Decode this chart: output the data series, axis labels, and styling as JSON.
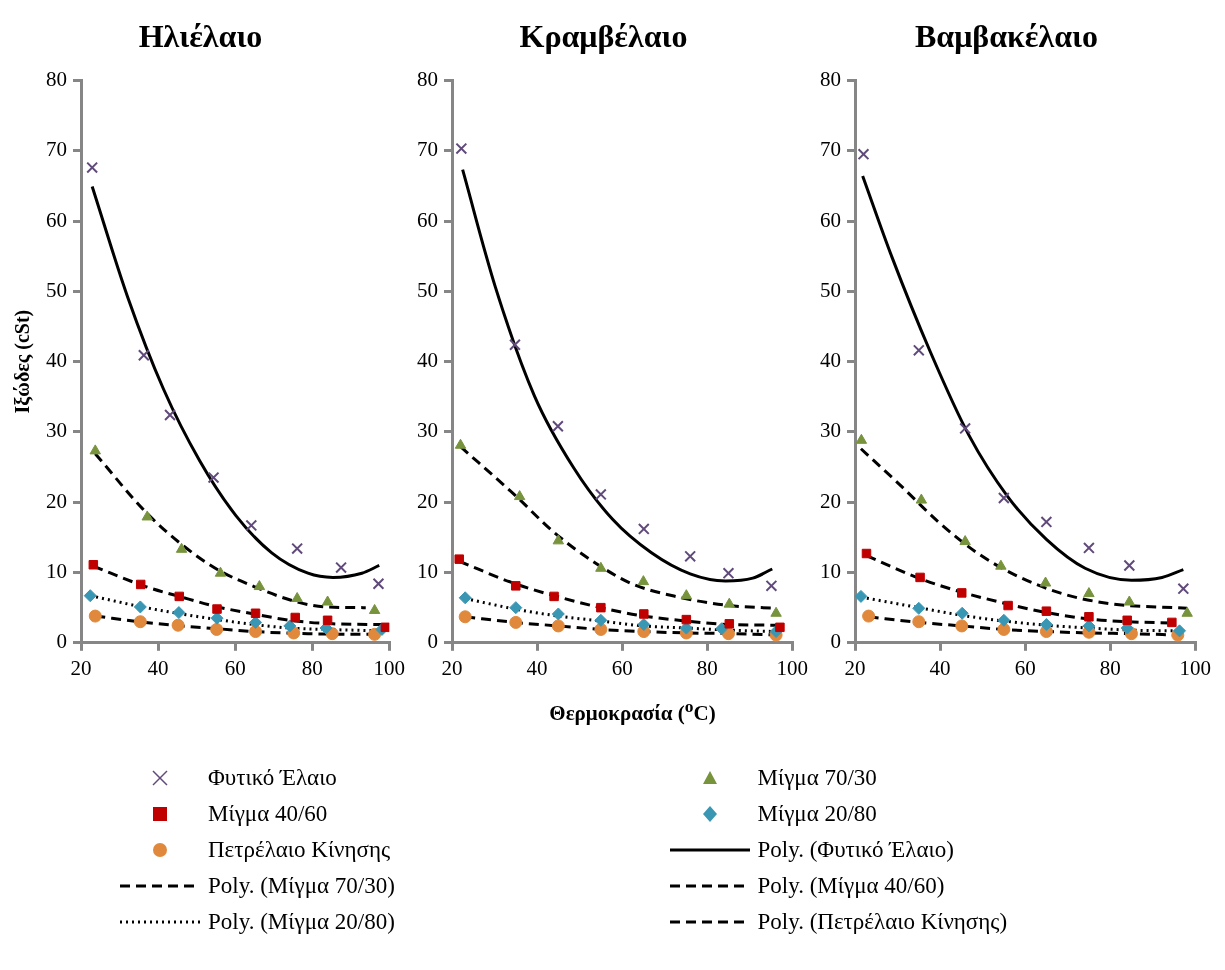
{
  "chart_data": [
    {
      "type": "scatter",
      "title": "Ηλιέλαιο",
      "ylabel": "Ιξώδες (cSt)",
      "xlim": [
        20,
        100
      ],
      "xticks": [
        20,
        40,
        60,
        80,
        100
      ],
      "ylim": [
        0,
        80
      ],
      "yticks": [
        0,
        10,
        20,
        30,
        40,
        50,
        60,
        70,
        80
      ],
      "grid": false,
      "legend": "bottom",
      "series": [
        {
          "name": "Φυτικό Έλαιο",
          "type": "scatter",
          "marker": "cross",
          "color": "#604a7b",
          "x": [
            22.9,
            36.3,
            43.1,
            54.4,
            64.2,
            76.1,
            87.5,
            97.2
          ],
          "values": [
            67.6,
            40.9,
            32.4,
            23.5,
            16.7,
            13.4,
            10.7,
            8.4
          ]
        },
        {
          "name": "Μίγμα 70/30",
          "type": "scatter",
          "marker": "triangle",
          "color": "#77933c",
          "x": [
            23.7,
            37.2,
            46.1,
            56.2,
            66.3,
            76.1,
            84,
            96.2
          ],
          "values": [
            27.3,
            17.9,
            13.3,
            9.9,
            8.0,
            6.3,
            5.8,
            4.6
          ]
        },
        {
          "name": "Μίγμα 40/60",
          "type": "scatter",
          "marker": "square",
          "color": "#c00000",
          "x": [
            23.2,
            35.5,
            45.5,
            55.3,
            65.3,
            75.6,
            84,
            99
          ],
          "values": [
            11.1,
            8.3,
            6.6,
            4.8,
            4.2,
            3.6,
            3.2,
            2.2
          ]
        },
        {
          "name": "Μίγμα 20/80",
          "type": "scatter",
          "marker": "diamond",
          "color": "#3a97b4",
          "x": [
            22.4,
            35.4,
            45.4,
            55.3,
            65.3,
            74.2,
            83.6,
            98.1
          ],
          "values": [
            6.7,
            5.1,
            4.3,
            3.5,
            2.9,
            2.4,
            2.1,
            1.9
          ]
        },
        {
          "name": "Πετρέλαιο Κίνησης",
          "type": "scatter",
          "marker": "circle",
          "color": "#e0893c",
          "x": [
            23.7,
            35.4,
            45.2,
            55.2,
            65.3,
            75.2,
            85.2,
            96.2
          ],
          "values": [
            3.8,
            3.0,
            2.5,
            1.9,
            1.6,
            1.4,
            1.3,
            1.2
          ]
        },
        {
          "name": "Poly. (Φυτικό Έλαιο)",
          "type": "line",
          "line_style": "solid",
          "color": "#000000",
          "x": [
            22.9,
            32.1,
            41.4,
            50.8,
            60.2,
            69.5,
            78.9,
            85.4,
            92.9,
            97.4
          ],
          "values": [
            64.9,
            49.2,
            36.1,
            25.9,
            18.1,
            12.8,
            9.9,
            9.3,
            9.9,
            11.0
          ]
        },
        {
          "name": "Poly. (Μίγμα 70/30)",
          "type": "line",
          "line_style": "dashed",
          "color": "#000000",
          "x": [
            23.7,
            36.8,
            46.1,
            55.5,
            64.9,
            76.1,
            83.6,
            93.9
          ],
          "values": [
            26.9,
            18.6,
            14.0,
            10.4,
            8.0,
            5.8,
            5.1,
            5.0
          ]
        },
        {
          "name": "Poly. (Μίγμα 40/60)",
          "type": "line",
          "line_style": "dashed",
          "color": "#000000",
          "x": [
            23.2,
            36.8,
            46.1,
            55.5,
            64.9,
            74.2,
            85.4,
            98.6
          ],
          "values": [
            10.9,
            8.0,
            6.5,
            5.1,
            4.1,
            3.2,
            2.7,
            2.6
          ]
        },
        {
          "name": "Poly. (Μίγμα 20/80)",
          "type": "line",
          "line_style": "dotted",
          "color": "#000000",
          "x": [
            22.4,
            36.8,
            46.1,
            55.5,
            64.9,
            74.2,
            83.6,
            98.6
          ],
          "values": [
            6.7,
            5.0,
            4.1,
            3.3,
            2.6,
            2.1,
            1.9,
            1.7
          ]
        },
        {
          "name": "Poly. (Πετρέλαιο Κίνησης)",
          "type": "line",
          "line_style": "dashed",
          "color": "#000000",
          "x": [
            23.7,
            36.8,
            46.1,
            55.5,
            64.9,
            78.9,
            92.9,
            97.6
          ],
          "values": [
            3.8,
            2.9,
            2.4,
            2.0,
            1.6,
            1.3,
            1.2,
            1.2
          ]
        }
      ]
    },
    {
      "type": "scatter",
      "title": "Κραμβέλαιο",
      "xlabel": "Θερμοκρασία ($^{o}$C)",
      "xlim": [
        20,
        100
      ],
      "xticks": [
        20,
        40,
        60,
        80,
        100
      ],
      "ylim": [
        0,
        80
      ],
      "yticks": [
        0,
        10,
        20,
        30,
        40,
        50,
        60,
        70,
        80
      ],
      "grid": false,
      "series": [
        {
          "name": "Φυτικό Έλαιο",
          "type": "scatter",
          "marker": "cross",
          "color": "#604a7b",
          "x": [
            22.2,
            34.8,
            44.9,
            55.0,
            65.1,
            76.0,
            85.0,
            95.1
          ],
          "values": [
            70.3,
            42.4,
            30.8,
            21.1,
            16.2,
            12.3,
            9.9,
            8.1
          ]
        },
        {
          "name": "Μίγμα 70/30",
          "type": "scatter",
          "marker": "triangle",
          "color": "#77933c",
          "x": [
            22.0,
            35.9,
            45.0,
            55.0,
            65.0,
            75.1,
            85.2,
            96.2
          ],
          "values": [
            28.1,
            20.8,
            14.5,
            10.6,
            8.7,
            6.7,
            5.5,
            4.2
          ]
        },
        {
          "name": "Μίγμα 40/60",
          "type": "scatter",
          "marker": "square",
          "color": "#c00000",
          "x": [
            21.7,
            35.0,
            44.0,
            55.0,
            65.1,
            75.1,
            85.2,
            97.1
          ],
          "values": [
            11.9,
            8.1,
            6.6,
            5.0,
            4.1,
            3.3,
            2.7,
            2.2
          ]
        },
        {
          "name": "Μίγμα 20/80",
          "type": "scatter",
          "marker": "diamond",
          "color": "#3a97b4",
          "x": [
            23.1,
            35.0,
            45.0,
            55.0,
            65.1,
            75.1,
            83.4,
            96.2
          ],
          "values": [
            6.4,
            5.0,
            4.1,
            3.2,
            2.6,
            2.1,
            2.0,
            1.6
          ]
        },
        {
          "name": "Πετρέλαιο Κίνησης",
          "type": "scatter",
          "marker": "circle",
          "color": "#e0893c",
          "x": [
            23.1,
            35.0,
            45.0,
            55.0,
            65.1,
            75.1,
            85.0,
            96.2
          ],
          "values": [
            3.7,
            2.9,
            2.4,
            1.9,
            1.6,
            1.4,
            1.3,
            1.1
          ]
        },
        {
          "name": "Poly. (Φυτικό Έλαιο)",
          "type": "line",
          "line_style": "solid",
          "color": "#000000",
          "x": [
            22.5,
            30.2,
            39.4,
            48.6,
            57.7,
            66.9,
            76.0,
            84.3,
            90.7,
            95.3
          ],
          "values": [
            67.3,
            50.6,
            35.1,
            24.9,
            17.6,
            12.8,
            9.8,
            8.8,
            9.2,
            10.5
          ]
        },
        {
          "name": "Poly. (Μίγμα 70/30)",
          "type": "line",
          "line_style": "dashed",
          "color": "#000000",
          "x": [
            22.0,
            34.8,
            44.0,
            53.1,
            62.3,
            73.3,
            85.2,
            96.2
          ],
          "values": [
            27.9,
            21.0,
            15.7,
            11.6,
            8.4,
            6.5,
            5.3,
            4.9
          ]
        },
        {
          "name": "Poly. (Μίγμα 40/60)",
          "type": "line",
          "line_style": "dashed",
          "color": "#000000",
          "x": [
            21.7,
            34.8,
            44.0,
            55.0,
            65.1,
            75.1,
            85.2,
            97.1
          ],
          "values": [
            11.6,
            8.4,
            6.7,
            5.0,
            3.8,
            3.1,
            2.6,
            2.5
          ]
        },
        {
          "name": "Poly. (Μίγμα 20/80)",
          "type": "line",
          "line_style": "dotted",
          "color": "#000000",
          "x": [
            23.1,
            34.8,
            45.0,
            55.0,
            65.1,
            75.1,
            85.2,
            96.2
          ],
          "values": [
            6.3,
            4.8,
            3.8,
            3.1,
            2.4,
            2.1,
            1.8,
            1.6
          ]
        },
        {
          "name": "Poly. (Πετρέλαιο Κίνησης)",
          "type": "line",
          "line_style": "dashed",
          "color": "#000000",
          "x": [
            23.1,
            34.8,
            45.0,
            55.0,
            65.1,
            75.1,
            86.1,
            96.2
          ],
          "values": [
            3.7,
            2.9,
            2.4,
            1.9,
            1.6,
            1.4,
            1.3,
            1.1
          ]
        }
      ]
    },
    {
      "type": "scatter",
      "title": "Βαμβακέλαιο",
      "xlim": [
        20,
        100
      ],
      "xticks": [
        20,
        40,
        60,
        80,
        100
      ],
      "ylim": [
        0,
        80
      ],
      "yticks": [
        0,
        10,
        20,
        30,
        40,
        50,
        60,
        70,
        80
      ],
      "grid": false,
      "series": [
        {
          "name": "Φυτικό Έλαιο",
          "type": "scatter",
          "marker": "cross",
          "color": "#604a7b",
          "x": [
            22.0,
            35.0,
            45.9,
            55.0,
            65.0,
            75.0,
            84.5,
            97.2
          ],
          "values": [
            69.5,
            41.6,
            30.5,
            20.6,
            17.2,
            13.5,
            11.0,
            7.7
          ]
        },
        {
          "name": "Μίγμα 70/30",
          "type": "scatter",
          "marker": "triangle",
          "color": "#77933c",
          "x": [
            21.5,
            35.6,
            45.9,
            54.3,
            64.8,
            75.0,
            84.5,
            98.1
          ],
          "values": [
            28.8,
            20.3,
            14.4,
            10.9,
            8.5,
            7.0,
            5.8,
            4.2
          ]
        },
        {
          "name": "Μίγμα 40/60",
          "type": "scatter",
          "marker": "square",
          "color": "#c00000",
          "x": [
            22.7,
            35.3,
            45.1,
            56.0,
            65.0,
            75.0,
            84.0,
            94.5
          ],
          "values": [
            12.7,
            9.3,
            7.1,
            5.3,
            4.5,
            3.7,
            3.2,
            2.9
          ]
        },
        {
          "name": "Μίγμα 20/80",
          "type": "scatter",
          "marker": "diamond",
          "color": "#3a97b4",
          "x": [
            21.4,
            35.0,
            45.2,
            55.0,
            65.0,
            75.0,
            84.0,
            96.3
          ],
          "values": [
            6.6,
            4.9,
            4.2,
            3.2,
            2.6,
            2.4,
            2.1,
            1.7
          ]
        },
        {
          "name": "Πετρέλαιο Κίνησης",
          "type": "scatter",
          "marker": "circle",
          "color": "#e0893c",
          "x": [
            23.2,
            35.0,
            45.1,
            55.0,
            65.0,
            75.0,
            85.0,
            95.9
          ],
          "values": [
            3.8,
            3.0,
            2.4,
            1.9,
            1.6,
            1.5,
            1.3,
            1.1
          ]
        },
        {
          "name": "Poly. (Φυτικό Έλαιο)",
          "type": "line",
          "line_style": "solid",
          "color": "#000000",
          "x": [
            21.8,
            28.6,
            37.7,
            46.8,
            55.9,
            65.0,
            74.1,
            85.0,
            92.2,
            97.2
          ],
          "values": [
            66.4,
            55.0,
            41.4,
            29.5,
            20.8,
            14.7,
            10.6,
            8.9,
            9.3,
            10.4
          ]
        },
        {
          "name": "Poly. (Μίγμα 70/30)",
          "type": "line",
          "line_style": "dashed",
          "color": "#000000",
          "x": [
            21.4,
            30.5,
            39.6,
            48.7,
            57.8,
            68.7,
            79.6,
            98.1
          ],
          "values": [
            27.6,
            22.5,
            17.2,
            12.8,
            9.6,
            7.0,
            5.6,
            4.9
          ]
        },
        {
          "name": "Poly. (Μίγμα 40/60)",
          "type": "line",
          "line_style": "dashed",
          "color": "#000000",
          "x": [
            22.7,
            35.0,
            45.1,
            56.0,
            65.0,
            75.0,
            84.0,
            95.4
          ],
          "values": [
            12.4,
            9.2,
            7.2,
            5.5,
            4.3,
            3.4,
            3.0,
            2.8
          ]
        },
        {
          "name": "Poly. (Μίγμα 20/80)",
          "type": "line",
          "line_style": "dotted",
          "color": "#000000",
          "x": [
            21.4,
            35.0,
            45.2,
            55.0,
            65.0,
            75.0,
            85.0,
            96.3
          ],
          "values": [
            6.5,
            5.0,
            3.9,
            3.1,
            2.5,
            2.1,
            1.8,
            1.7
          ]
        },
        {
          "name": "Poly. (Πετρέλαιο Κίνησης)",
          "type": "line",
          "line_style": "dashed",
          "color": "#000000",
          "x": [
            23.2,
            35.0,
            45.1,
            55.0,
            65.0,
            75.0,
            85.0,
            95.9
          ],
          "values": [
            3.7,
            2.9,
            2.4,
            1.9,
            1.6,
            1.4,
            1.3,
            1.1
          ]
        }
      ]
    }
  ]
}
